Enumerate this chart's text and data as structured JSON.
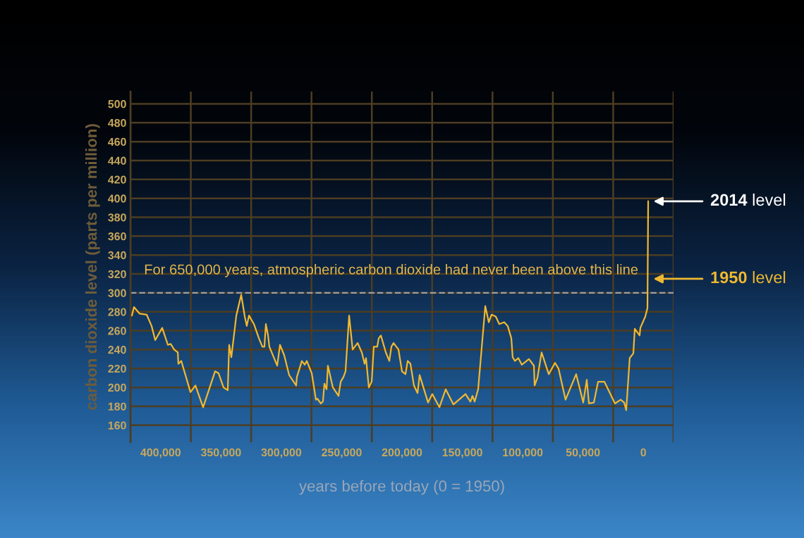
{
  "chart_data": {
    "type": "line",
    "xlabel": "years before today (0 = 1950)",
    "ylabel": "carbon dioxide level (parts per million)",
    "x": [
      423800,
      422100,
      417400,
      411600,
      407500,
      404500,
      398700,
      394000,
      391700,
      388800,
      385800,
      385300,
      382900,
      375300,
      371200,
      364800,
      354900,
      352000,
      347900,
      344400,
      343200,
      341400,
      337300,
      333200,
      330300,
      328600,
      326800,
      322700,
      318600,
      315700,
      314000,
      312800,
      311000,
      309900,
      303400,
      301100,
      297600,
      293500,
      287700,
      287100,
      283000,
      280600,
      278900,
      274800,
      271300,
      270100,
      267200,
      265500,
      264300,
      262500,
      261400,
      257300,
      252600,
      250800,
      248500,
      246800,
      243800,
      240900,
      236800,
      233300,
      231000,
      229800,
      227500,
      225100,
      223400,
      220500,
      219300,
      217500,
      213400,
      210500,
      208800,
      207000,
      202900,
      200000,
      197100,
      195300,
      193000,
      190100,
      187100,
      185400,
      178400,
      174900,
      169000,
      163800,
      157400,
      147400,
      143300,
      141600,
      139800,
      136900,
      131000,
      128100,
      125800,
      122300,
      119400,
      115300,
      112400,
      109400,
      108300,
      106500,
      103600,
      100700,
      94800,
      90700,
      90100,
      87800,
      84300,
      78400,
      73200,
      70300,
      64500,
      55700,
      49800,
      46900,
      45100,
      41000,
      37500,
      32300,
      23500,
      18800,
      15900,
      14200,
      11300,
      8300,
      7100,
      3100,
      2500,
      -1600,
      -3400,
      -4000
    ],
    "series": [
      {
        "color": "#f0b830",
        "values": [
          276,
          285,
          278,
          277,
          265,
          250,
          263,
          245,
          246,
          240,
          237,
          225,
          228,
          195,
          202,
          179,
          217,
          215,
          200,
          197,
          245,
          232,
          276,
          298,
          275,
          265,
          276,
          267,
          252,
          243,
          243,
          267,
          255,
          243,
          223,
          245,
          234,
          213,
          202,
          211,
          228,
          224,
          228,
          215,
          187,
          188,
          183,
          185,
          204,
          198,
          223,
          200,
          191,
          206,
          211,
          217,
          276,
          240,
          247,
          237,
          225,
          231,
          200,
          206,
          243,
          243,
          252,
          255,
          237,
          228,
          243,
          247,
          240,
          217,
          214,
          228,
          225,
          202,
          194,
          213,
          184,
          193,
          179,
          198,
          182,
          193,
          185,
          191,
          185,
          198,
          286,
          269,
          277,
          275,
          267,
          269,
          265,
          252,
          232,
          228,
          231,
          224,
          230,
          223,
          202,
          210,
          237,
          214,
          226,
          220,
          187,
          214,
          184,
          208,
          183,
          184,
          206,
          206,
          183,
          187,
          184,
          176,
          231,
          236,
          262,
          255,
          263,
          275,
          284,
          397
        ]
      }
    ],
    "xlim": [
      425000,
      -25000
    ],
    "xticks": [
      {
        "value": 425000,
        "label": null
      },
      {
        "value": 400000,
        "label": "400,000"
      },
      {
        "value": 375000,
        "label": null
      },
      {
        "value": 350000,
        "label": "350,000"
      },
      {
        "value": 325000,
        "label": null
      },
      {
        "value": 300000,
        "label": "300,000"
      },
      {
        "value": 275000,
        "label": null
      },
      {
        "value": 250000,
        "label": "250,000"
      },
      {
        "value": 225000,
        "label": null
      },
      {
        "value": 200000,
        "label": "200,000"
      },
      {
        "value": 175000,
        "label": null
      },
      {
        "value": 150000,
        "label": "150,000"
      },
      {
        "value": 125000,
        "label": null
      },
      {
        "value": 100000,
        "label": "100,000"
      },
      {
        "value": 75000,
        "label": null
      },
      {
        "value": 50000,
        "label": "50,000"
      },
      {
        "value": 25000,
        "label": null
      },
      0,
      {
        "value": -25000,
        "label": null
      }
    ],
    "ylim": [
      142,
      513
    ],
    "yticks": [
      160,
      180,
      200,
      220,
      240,
      260,
      280,
      300,
      320,
      340,
      360,
      380,
      400,
      420,
      440,
      460,
      480,
      500
    ],
    "grid": true,
    "ref_lines": [
      {
        "axis": "y",
        "value": 300,
        "label": "For 650,000 years, atmospheric carbon dioxide had never been above this line",
        "color": "#9aa0aa",
        "line_style": "dashed"
      }
    ],
    "annotations": [
      "2014 level",
      "1950 level"
    ]
  }
}
